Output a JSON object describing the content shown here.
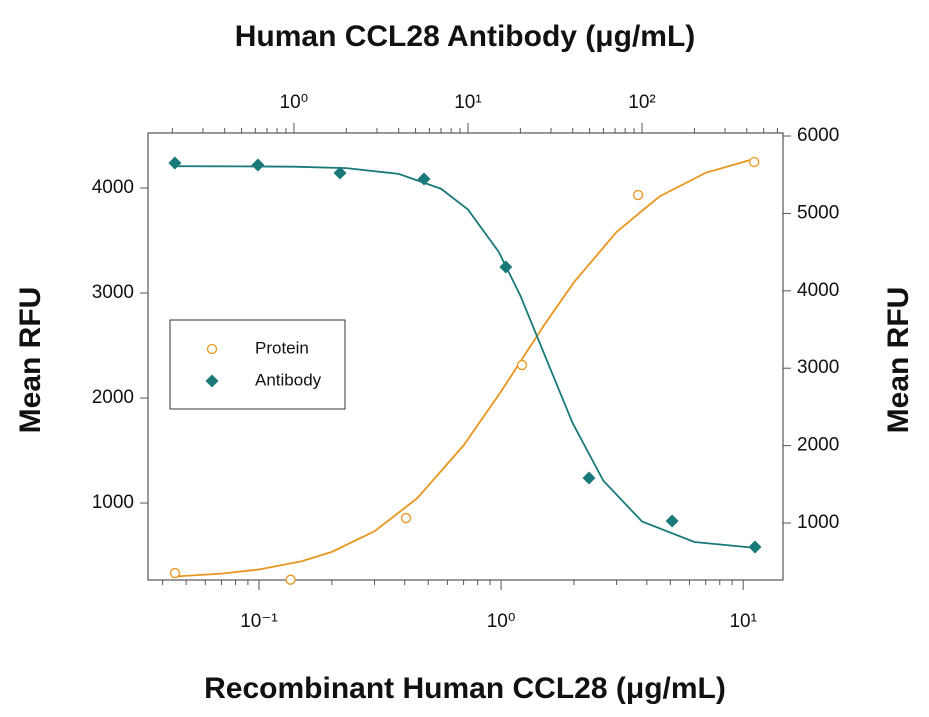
{
  "chart_data": {
    "type": "scatter",
    "title": "Human CCL28 Antibody (μg/mL)",
    "xlabel": "Recombinant Human CCL28 (μg/mL)",
    "ylabel": "Mean RFU",
    "y2label": "Mean RFU",
    "xscale": "log",
    "x2scale": "log",
    "minor_ticks": true,
    "xlim": [
      0.0348,
      14.6
    ],
    "xticks": [
      {
        "value": 0.1,
        "label": "10⁻¹"
      },
      {
        "value": 1,
        "label": "10⁰"
      },
      {
        "value": 10,
        "label": "10¹"
      }
    ],
    "x2lim": [
      0.145,
      646
    ],
    "x2ticks": [
      {
        "value": 1,
        "label": "10⁰"
      },
      {
        "value": 10,
        "label": "10¹"
      },
      {
        "value": 100,
        "label": "10²"
      }
    ],
    "ylim": [
      267,
      4524
    ],
    "yticks": [
      1000,
      2000,
      3000,
      4000
    ],
    "y2lim": [
      264,
      6039
    ],
    "y2ticks": [
      1000,
      2000,
      3000,
      4000,
      5000,
      6000
    ],
    "legend": "middle-left",
    "series": [
      {
        "name": "Protein",
        "color": "#e8961e",
        "marker": "circle",
        "axis": "y",
        "x": [
          0.045,
          0.135,
          0.405,
          1.22,
          3.68,
          11.1
        ],
        "values": [
          333,
          270,
          857,
          2314,
          3933,
          4248
        ],
        "fit_x": [
          0.045,
          0.07,
          0.1,
          0.15,
          0.2,
          0.3,
          0.45,
          0.7,
          1,
          1.5,
          2,
          3,
          4.5,
          7,
          11.1
        ],
        "fit_values": [
          300,
          328,
          367,
          446,
          535,
          731,
          1045,
          1549,
          2063,
          2689,
          3103,
          3582,
          3918,
          4145,
          4278
        ]
      },
      {
        "name": "Antibody",
        "color": "#1a7a7a",
        "marker": "diamond",
        "axis": "y2",
        "x": [
          0.207,
          0.621,
          1.84,
          5.59,
          16.5,
          49.6,
          149,
          446
        ],
        "values": [
          5651,
          5625,
          5522,
          5444,
          4307,
          1581,
          1026,
          690
        ],
        "fit_x": [
          0.2,
          0.5,
          1,
          2,
          4,
          7,
          10,
          15,
          20,
          28,
          40,
          60,
          100,
          200,
          446
        ],
        "fit_values": [
          5610,
          5608,
          5604,
          5585,
          5511,
          5319,
          5050,
          4506,
          3938,
          3135,
          2288,
          1546,
          1020,
          755,
          679
        ]
      }
    ]
  }
}
